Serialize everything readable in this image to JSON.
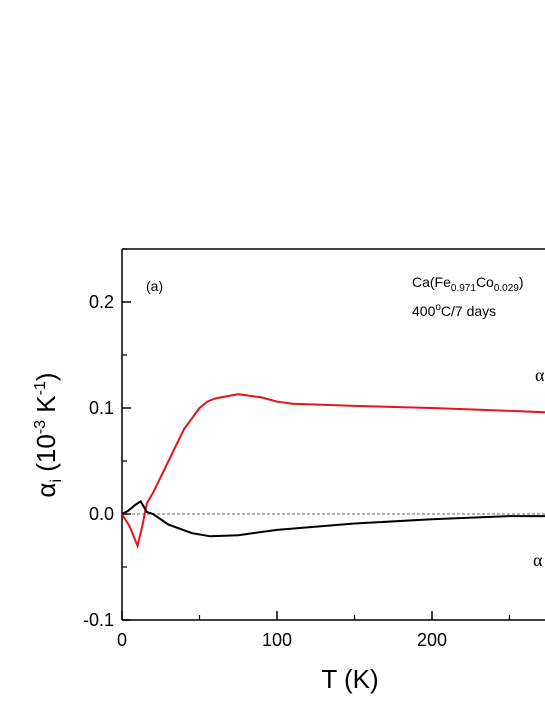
{
  "chart_data": {
    "type": "line",
    "xlabel": "T (K)",
    "ylabel": {
      "parts": [
        "α",
        "i",
        " (10",
        "-3",
        " K",
        "-1",
        ")"
      ]
    },
    "panel_label": "(a)",
    "composition": {
      "parts": [
        "Ca(Fe",
        "0.971",
        "Co",
        "0.029",
        ")"
      ]
    },
    "treatment": {
      "parts": [
        "400",
        "o",
        "C/7 days"
      ]
    },
    "xlim": [
      0,
      300
    ],
    "ylim": [
      -0.1,
      0.25
    ],
    "xticks": [
      0,
      100,
      200
    ],
    "yticks": [
      {
        "value": -0.1,
        "label": "-0.1"
      },
      {
        "value": 0.0,
        "label": "0.0"
      },
      0.1,
      0.2
    ],
    "hline": 0,
    "series": [
      {
        "name": "α",
        "color": "#e8141b",
        "x": [
          0,
          5,
          10,
          13,
          16,
          20,
          30,
          40,
          50,
          55,
          60,
          75,
          90,
          100,
          110,
          150,
          200,
          220,
          273
        ],
        "values": [
          0,
          -0.012,
          -0.03,
          -0.012,
          0.01,
          0.02,
          0.05,
          0.08,
          0.1,
          0.106,
          0.109,
          0.113,
          0.11,
          0.106,
          0.104,
          0.102,
          0.1,
          0.099,
          0.096
        ]
      },
      {
        "name": "α",
        "color": "#000000",
        "x": [
          0,
          4,
          8,
          12,
          16,
          20,
          30,
          45,
          57,
          75,
          100,
          150,
          200,
          250,
          273
        ],
        "values": [
          0,
          0.003,
          0.008,
          0.012,
          0.002,
          0.0,
          -0.01,
          -0.018,
          -0.021,
          -0.02,
          -0.015,
          -0.009,
          -0.005,
          -0.002,
          -0.002
        ]
      }
    ]
  }
}
